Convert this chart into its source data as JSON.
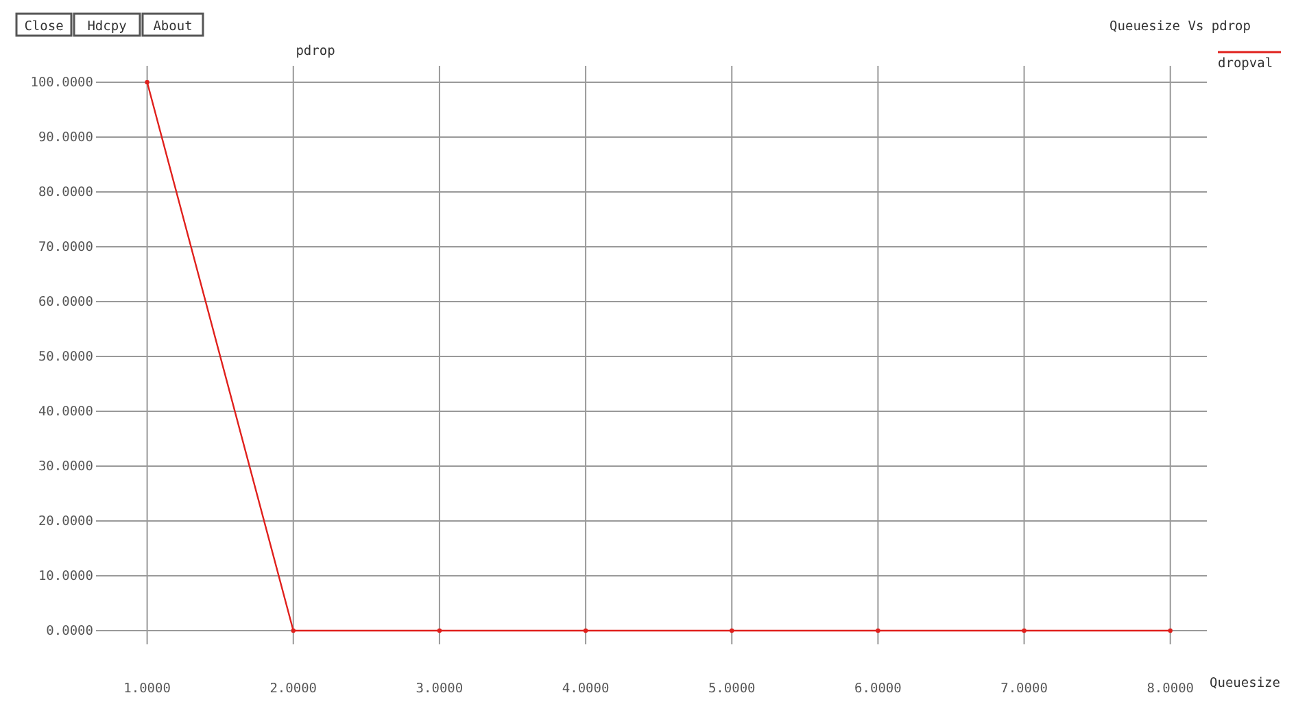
{
  "chart_data": {
    "type": "line",
    "title": "Queuesize Vs pdrop",
    "xlabel": "Queuesize",
    "ylabel": "pdrop",
    "annotations": [
      "Close",
      "Hdcpy",
      "About"
    ],
    "x": [
      1,
      2,
      3,
      4,
      5,
      6,
      7,
      8
    ],
    "series": [
      {
        "name": "dropval",
        "color": "#e0201c",
        "values": [
          100,
          0,
          0,
          0,
          0,
          0,
          0,
          0
        ]
      }
    ],
    "xlim": [
      0.65,
      8.25
    ],
    "ylim": [
      -2.5,
      103
    ],
    "xticks": [
      {
        "value": 1,
        "label": "1.0000"
      },
      {
        "value": 2,
        "label": "2.0000"
      },
      {
        "value": 3,
        "label": "3.0000"
      },
      {
        "value": 4,
        "label": "4.0000"
      },
      {
        "value": 5,
        "label": "5.0000"
      },
      {
        "value": 6,
        "label": "6.0000"
      },
      {
        "value": 7,
        "label": "7.0000"
      },
      {
        "value": 8,
        "label": "8.0000"
      }
    ],
    "yticks": [
      {
        "value": 0,
        "label": "0.0000"
      },
      {
        "value": 10,
        "label": "10.0000"
      },
      {
        "value": 20,
        "label": "20.0000"
      },
      {
        "value": 30,
        "label": "30.0000"
      },
      {
        "value": 40,
        "label": "40.0000"
      },
      {
        "value": 50,
        "label": "50.0000"
      },
      {
        "value": 60,
        "label": "60.0000"
      },
      {
        "value": 70,
        "label": "70.0000"
      },
      {
        "value": 80,
        "label": "80.0000"
      },
      {
        "value": 90,
        "label": "90.0000"
      },
      {
        "value": 100,
        "label": "100.0000"
      }
    ],
    "grid": true,
    "legend": "top right",
    "marker": "circle",
    "line_style": "solid"
  }
}
